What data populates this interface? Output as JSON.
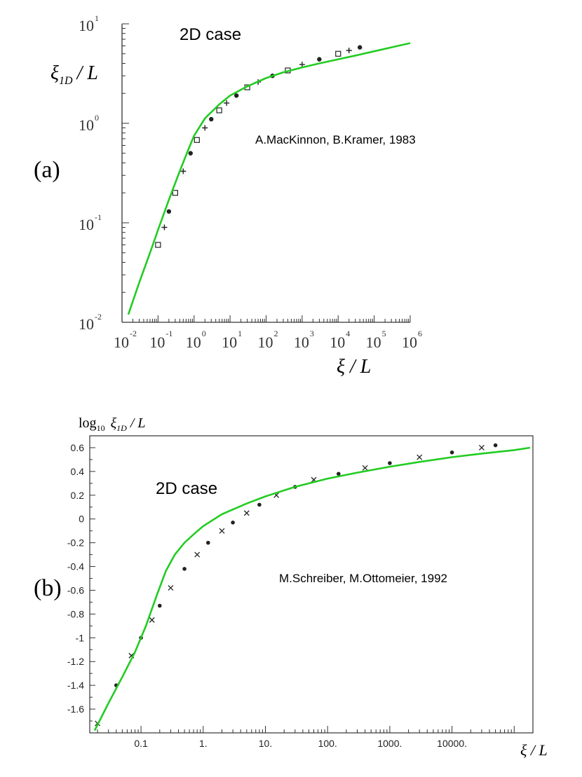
{
  "chart_data": [
    {
      "panel_label": "(a)",
      "type": "scatter",
      "annotation_case": "2D case",
      "annotation_credit": "A.MacKinnon,  B.Kramer, 1983",
      "ylabel_sym": "ξ",
      "ylabel_sub": "1D",
      "ylabel_rest": "/ L",
      "xlabel": "ξ / L",
      "x_scale": "log",
      "y_scale": "log",
      "xlim": [
        0.01,
        1000000
      ],
      "ylim": [
        0.01,
        10
      ],
      "x_ticks": [
        {
          "base": "10",
          "exp": "-2"
        },
        {
          "base": "10",
          "exp": "-1"
        },
        {
          "base": "10",
          "exp": "0"
        },
        {
          "base": "10",
          "exp": "1"
        },
        {
          "base": "10",
          "exp": "2"
        },
        {
          "base": "10",
          "exp": "3"
        },
        {
          "base": "10",
          "exp": "4"
        },
        {
          "base": "10",
          "exp": "5"
        },
        {
          "base": "10",
          "exp": "6"
        }
      ],
      "y_ticks": [
        {
          "base": "10",
          "exp": "1"
        },
        {
          "base": "10",
          "exp": "0"
        },
        {
          "base": "10",
          "exp": "-1"
        },
        {
          "base": "10",
          "exp": "-2"
        }
      ],
      "series": [
        {
          "role": "data",
          "color": "#222222",
          "x": [
            0.1,
            0.15,
            0.2,
            0.3,
            0.5,
            0.8,
            1.2,
            2,
            3,
            5,
            8,
            15,
            30,
            60,
            150,
            400,
            1000,
            3000,
            10000,
            20000,
            40000
          ],
          "y": [
            0.06,
            0.09,
            0.13,
            0.2,
            0.33,
            0.5,
            0.68,
            0.9,
            1.1,
            1.35,
            1.6,
            1.9,
            2.3,
            2.6,
            3.0,
            3.4,
            3.9,
            4.4,
            5.0,
            5.4,
            5.8
          ]
        },
        {
          "role": "fit",
          "color": "#22cc22",
          "x": [
            0.015,
            0.03,
            0.06,
            0.1,
            0.2,
            0.4,
            0.7,
            1,
            2,
            5,
            10,
            30,
            100,
            300,
            1000,
            3000,
            10000,
            30000,
            100000,
            300000,
            1000000
          ],
          "y": [
            0.012,
            0.025,
            0.05,
            0.085,
            0.17,
            0.33,
            0.55,
            0.75,
            1.12,
            1.55,
            1.9,
            2.35,
            2.85,
            3.25,
            3.65,
            4.0,
            4.4,
            4.8,
            5.3,
            5.8,
            6.4
          ]
        }
      ]
    },
    {
      "panel_label": "(b)",
      "type": "scatter",
      "annotation_case": "2D case",
      "annotation_credit": "M.Schreiber,  M.Ottomeier, 1992",
      "ylabel_prefix": "log",
      "ylabel_prefix_sub": "10",
      "ylabel_sym": "ξ",
      "ylabel_sub": "1D",
      "ylabel_rest": "/ L",
      "xlabel": "ξ / L",
      "x_scale": "log",
      "xlim": [
        0.015,
        200000
      ],
      "ylim": [
        -1.8,
        0.7
      ],
      "x_ticks": [
        {
          "label": "0.1",
          "value": 0.1
        },
        {
          "label": "1.",
          "value": 1
        },
        {
          "label": "10.",
          "value": 10
        },
        {
          "label": "100.",
          "value": 100
        },
        {
          "label": "1000.",
          "value": 1000
        },
        {
          "label": "10000.",
          "value": 10000
        }
      ],
      "y_ticks": [
        {
          "label": "0.6",
          "value": 0.6
        },
        {
          "label": "0.4",
          "value": 0.4
        },
        {
          "label": "0.2",
          "value": 0.2
        },
        {
          "label": "0",
          "value": 0
        },
        {
          "label": "-0.2",
          "value": -0.2
        },
        {
          "label": "-0.4",
          "value": -0.4
        },
        {
          "label": "-0.6",
          "value": -0.6
        },
        {
          "label": "-0.8",
          "value": -0.8
        },
        {
          "label": "-1",
          "value": -1
        },
        {
          "label": "-1.2",
          "value": -1.2
        },
        {
          "label": "-1.4",
          "value": -1.4
        },
        {
          "label": "-1.6",
          "value": -1.6
        }
      ],
      "series": [
        {
          "role": "data",
          "color": "#222222",
          "x": [
            0.02,
            0.04,
            0.07,
            0.1,
            0.15,
            0.2,
            0.3,
            0.5,
            0.8,
            1.2,
            2,
            3,
            5,
            8,
            15,
            30,
            60,
            150,
            400,
            1000,
            3000,
            10000,
            30000,
            50000
          ],
          "y": [
            -1.72,
            -1.4,
            -1.15,
            -1.0,
            -0.85,
            -0.73,
            -0.58,
            -0.42,
            -0.3,
            -0.2,
            -0.1,
            -0.03,
            0.05,
            0.12,
            0.2,
            0.27,
            0.33,
            0.38,
            0.43,
            0.47,
            0.52,
            0.56,
            0.6,
            0.62
          ]
        },
        {
          "role": "fit",
          "color": "#22cc22",
          "x": [
            0.018,
            0.03,
            0.05,
            0.08,
            0.12,
            0.18,
            0.25,
            0.35,
            0.5,
            0.7,
            1,
            2,
            5,
            10,
            30,
            100,
            300,
            1000,
            3000,
            10000,
            30000,
            100000,
            180000
          ],
          "y": [
            -1.78,
            -1.55,
            -1.33,
            -1.12,
            -0.9,
            -0.64,
            -0.44,
            -0.3,
            -0.2,
            -0.13,
            -0.06,
            0.04,
            0.13,
            0.19,
            0.27,
            0.34,
            0.39,
            0.44,
            0.48,
            0.52,
            0.55,
            0.58,
            0.6
          ]
        }
      ]
    }
  ]
}
